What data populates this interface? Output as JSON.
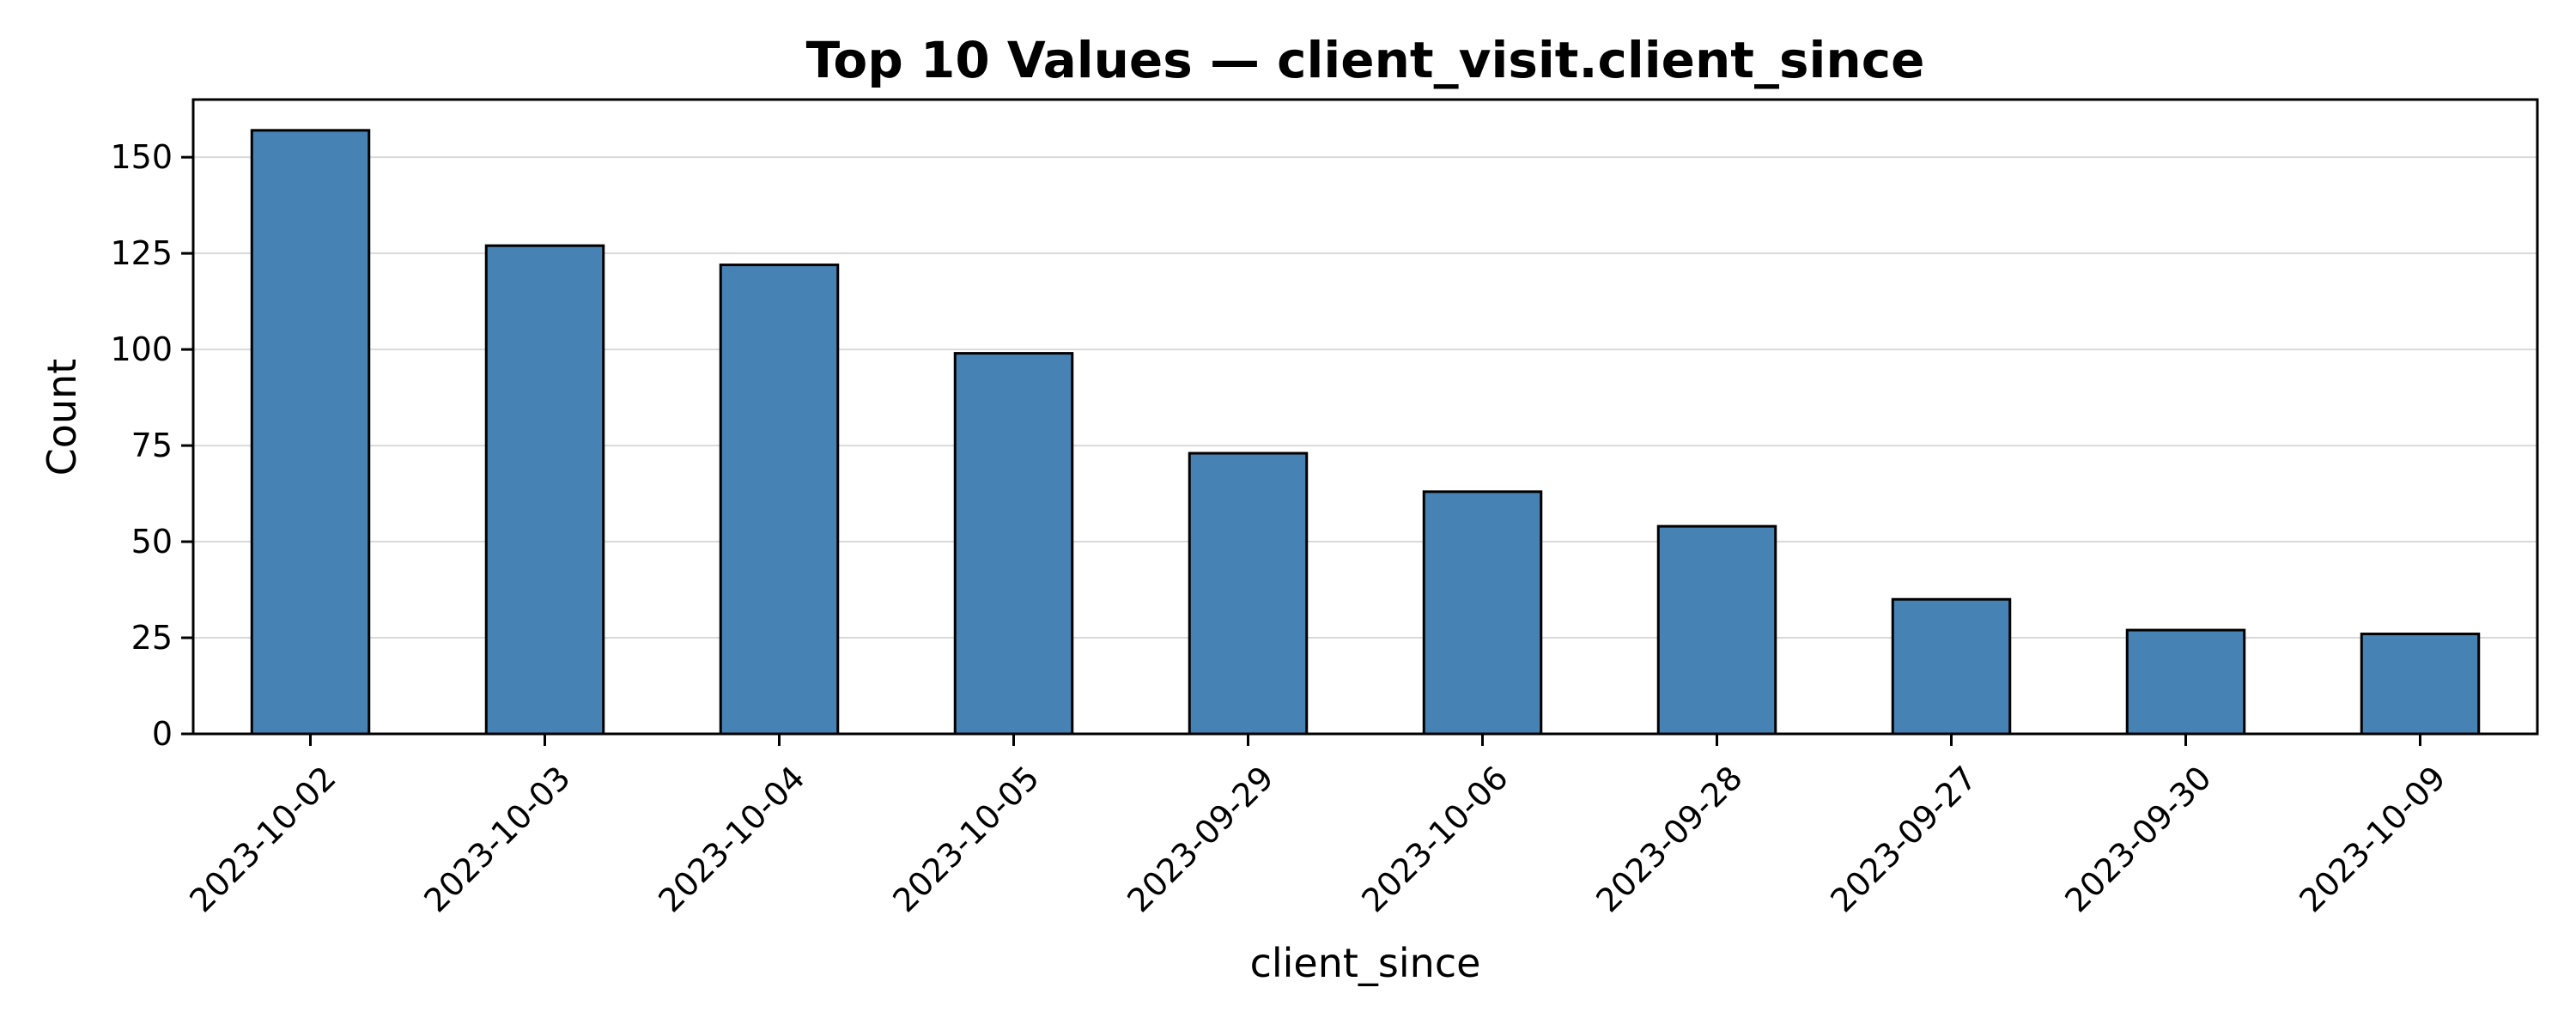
{
  "chart_data": {
    "type": "bar",
    "title": "Top 10 Values — client_visit.client_since",
    "xlabel": "client_since",
    "ylabel": "Count",
    "categories": [
      "2023-10-02",
      "2023-10-03",
      "2023-10-04",
      "2023-10-05",
      "2023-09-29",
      "2023-10-06",
      "2023-09-28",
      "2023-09-27",
      "2023-09-30",
      "2023-10-09"
    ],
    "values": [
      157,
      127,
      122,
      99,
      73,
      63,
      54,
      35,
      27,
      26
    ],
    "ylim": [
      0,
      165
    ],
    "yticks": [
      0,
      25,
      50,
      75,
      100,
      125,
      150
    ],
    "grid": "y",
    "legend": "none",
    "colors": {
      "bar_fill": "#4682b4",
      "bar_edge": "#000000",
      "grid": "#d9d9d9",
      "axis": "#000000"
    }
  }
}
